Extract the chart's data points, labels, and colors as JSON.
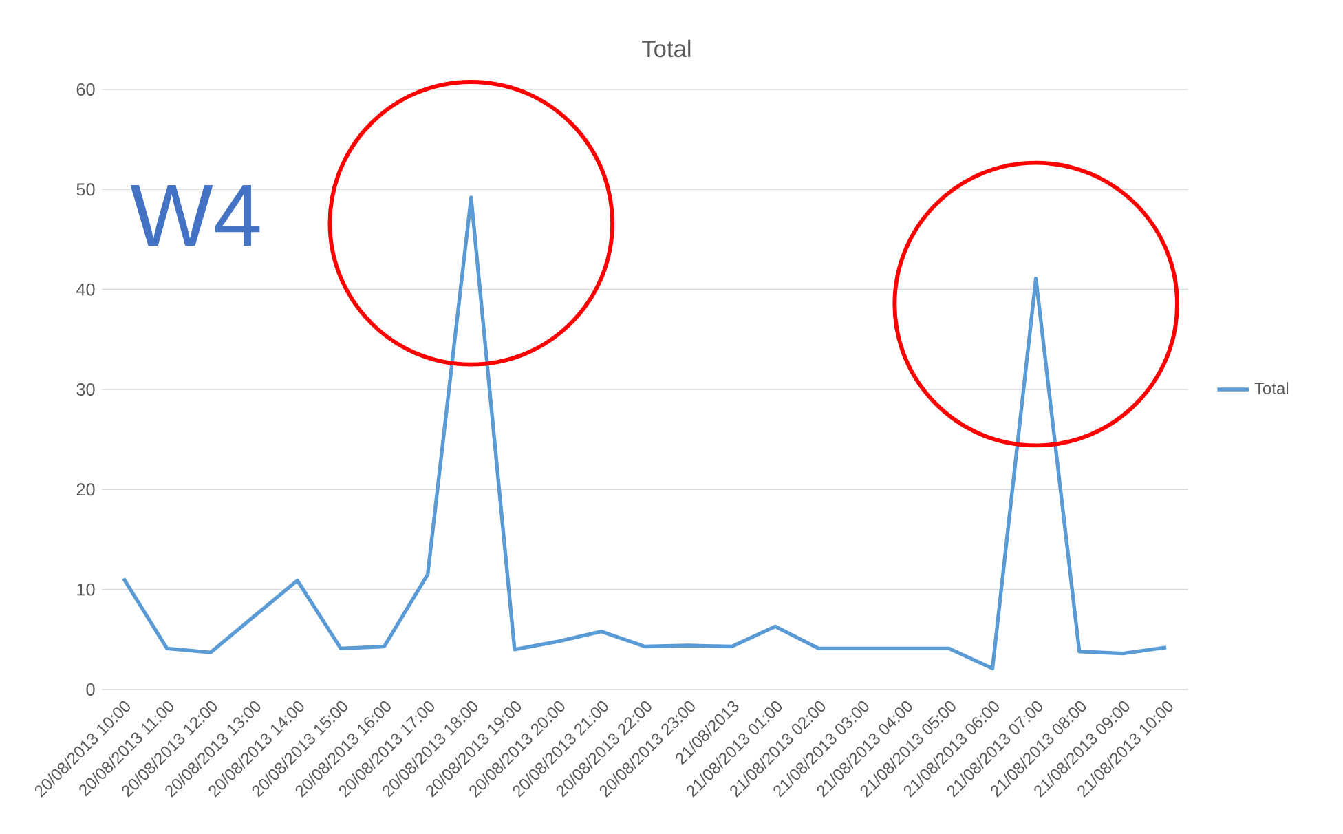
{
  "chart_data": {
    "type": "line",
    "title": "Total",
    "categories": [
      "20/08/2013 10:00",
      "20/08/2013 11:00",
      "20/08/2013 12:00",
      "20/08/2013 13:00",
      "20/08/2013 14:00",
      "20/08/2013 15:00",
      "20/08/2013 16:00",
      "20/08/2013 17:00",
      "20/08/2013 18:00",
      "20/08/2013 19:00",
      "20/08/2013 20:00",
      "20/08/2013 21:00",
      "20/08/2013 22:00",
      "20/08/2013 23:00",
      "21/08/2013",
      "21/08/2013 01:00",
      "21/08/2013 02:00",
      "21/08/2013 03:00",
      "21/08/2013 04:00",
      "21/08/2013 05:00",
      "21/08/2013 06:00",
      "21/08/2013 07:00",
      "21/08/2013 08:00",
      "21/08/2013 09:00",
      "21/08/2013 10:00"
    ],
    "series": [
      {
        "name": "Total",
        "color": "#5b9bd5",
        "values": [
          11.1,
          4.1,
          3.7,
          7.3,
          10.9,
          4.1,
          4.3,
          11.5,
          49.2,
          4.0,
          4.8,
          5.8,
          4.3,
          4.4,
          4.3,
          6.3,
          4.1,
          4.1,
          4.1,
          4.1,
          2.1,
          41.1,
          3.8,
          3.6,
          4.2
        ]
      }
    ],
    "ylim": [
      0,
      60
    ],
    "yticks": [
      0,
      10,
      20,
      30,
      40,
      50,
      60
    ],
    "grid": "y",
    "legend": "right",
    "marker": "none",
    "line_style": "solid",
    "annotations": [
      "W4"
    ]
  }
}
